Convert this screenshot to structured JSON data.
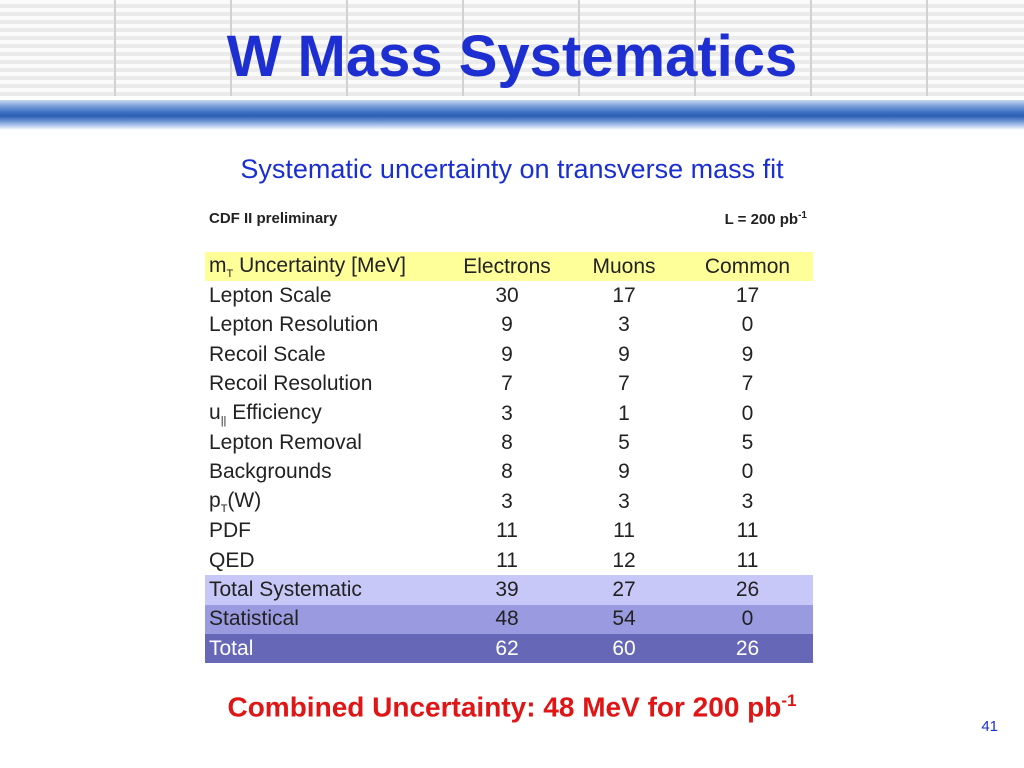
{
  "slide": {
    "title": "W Mass Systematics",
    "subtitle": "Systematic uncertainty on transverse mass fit",
    "page_number": "41"
  },
  "table": {
    "caption_left": "CDF II preliminary",
    "caption_right_base": "L = 200 pb",
    "caption_right_sup": "-1",
    "header": {
      "label_prefix": "m",
      "label_sub": "T",
      "label_suffix": " Uncertainty [MeV]",
      "electrons": "Electrons",
      "muons": "Muons",
      "common": "Common"
    },
    "rows": [
      {
        "label": "Lepton Scale",
        "electrons": "30",
        "muons": "17",
        "common": "17"
      },
      {
        "label": "Lepton Resolution",
        "electrons": "9",
        "muons": "3",
        "common": "0"
      },
      {
        "label": "Recoil Scale",
        "electrons": "9",
        "muons": "9",
        "common": "9"
      },
      {
        "label": "Recoil Resolution",
        "electrons": "7",
        "muons": "7",
        "common": "7"
      },
      {
        "label_prefix": "u",
        "label_sub": "||",
        "label_suffix": " Efficiency",
        "electrons": "3",
        "muons": "1",
        "common": "0"
      },
      {
        "label": "Lepton Removal",
        "electrons": "8",
        "muons": "5",
        "common": "5"
      },
      {
        "label": "Backgrounds",
        "electrons": "8",
        "muons": "9",
        "common": "0"
      },
      {
        "label_prefix": "p",
        "label_sub": "T",
        "label_suffix": "(W)",
        "electrons": "3",
        "muons": "3",
        "common": "3"
      },
      {
        "label": "PDF",
        "electrons": "11",
        "muons": "11",
        "common": "11"
      },
      {
        "label": "QED",
        "electrons": "11",
        "muons": "12",
        "common": "11"
      },
      {
        "label": "Total Systematic",
        "electrons": "39",
        "muons": "27",
        "common": "26"
      },
      {
        "label": "Statistical",
        "electrons": "48",
        "muons": "54",
        "common": "0"
      },
      {
        "label": "Total",
        "electrons": "62",
        "muons": "60",
        "common": "26"
      }
    ]
  },
  "combined": {
    "text": "Combined Uncertainty: 48 MeV for 200 pb",
    "sup": "-1"
  },
  "colors": {
    "title": "#1e2fd2",
    "combined": "#e01515",
    "header_row": "#ffff99",
    "total_systematic_row": "#c8c8f8",
    "statistical_row": "#9a9ae0",
    "total_row": "#6767b8"
  }
}
